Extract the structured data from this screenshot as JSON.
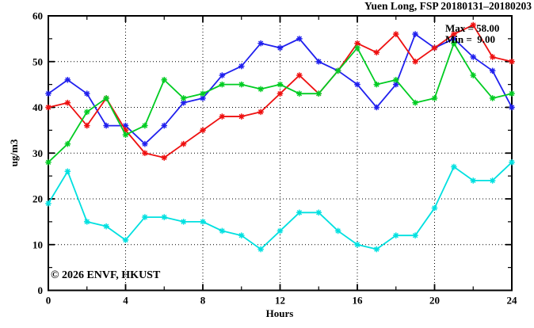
{
  "chart_data": {
    "type": "line",
    "title": "Yuen Long, FSP 20180131–20180203",
    "xlabel": "Hours",
    "ylabel": "ug/m3",
    "xlim": [
      0,
      24
    ],
    "ylim": [
      0,
      60
    ],
    "x_major_ticks": [
      0,
      4,
      8,
      12,
      16,
      20,
      24
    ],
    "x_minor_step": 2,
    "y_major_ticks": [
      0,
      10,
      20,
      30,
      40,
      50,
      60
    ],
    "y_minor_step": 5,
    "grid": "dotted-black-at-major-ticks",
    "legend": "none",
    "x": [
      0,
      1,
      2,
      3,
      4,
      5,
      6,
      7,
      8,
      9,
      10,
      11,
      12,
      13,
      14,
      15,
      16,
      17,
      18,
      19,
      20,
      21,
      22,
      23,
      24
    ],
    "series": [
      {
        "name": "blue",
        "color": "#2020ee",
        "values": [
          43,
          46,
          43,
          36,
          36,
          32,
          36,
          41,
          42,
          47,
          49,
          54,
          53,
          55,
          50,
          48,
          45,
          40,
          45,
          56,
          53,
          55,
          51,
          48,
          40
        ]
      },
      {
        "name": "red",
        "color": "#ee1010",
        "values": [
          40,
          41,
          36,
          42,
          35,
          30,
          29,
          32,
          35,
          38,
          38,
          39,
          43,
          47,
          43,
          48,
          54,
          52,
          56,
          50,
          53,
          56,
          58,
          51,
          50
        ]
      },
      {
        "name": "green",
        "color": "#00cc22",
        "values": [
          28,
          32,
          39,
          42,
          34,
          36,
          46,
          42,
          43,
          45,
          45,
          44,
          45,
          43,
          43,
          48,
          53,
          45,
          46,
          41,
          42,
          54,
          47,
          42,
          43
        ]
      },
      {
        "name": "cyan",
        "color": "#00e0e0",
        "values": [
          19,
          26,
          15,
          14,
          11,
          16,
          16,
          15,
          15,
          13,
          12,
          9,
          13,
          17,
          17,
          13,
          10,
          9,
          12,
          12,
          18,
          27,
          24,
          24,
          28
        ]
      }
    ],
    "annotations": {
      "max_label": "Max = 58.00",
      "min_label": "Min =  9.00"
    },
    "watermark": "© 2026 ENVF, HKUST",
    "frame_color": "#000000",
    "background_color": "#ffffff"
  }
}
